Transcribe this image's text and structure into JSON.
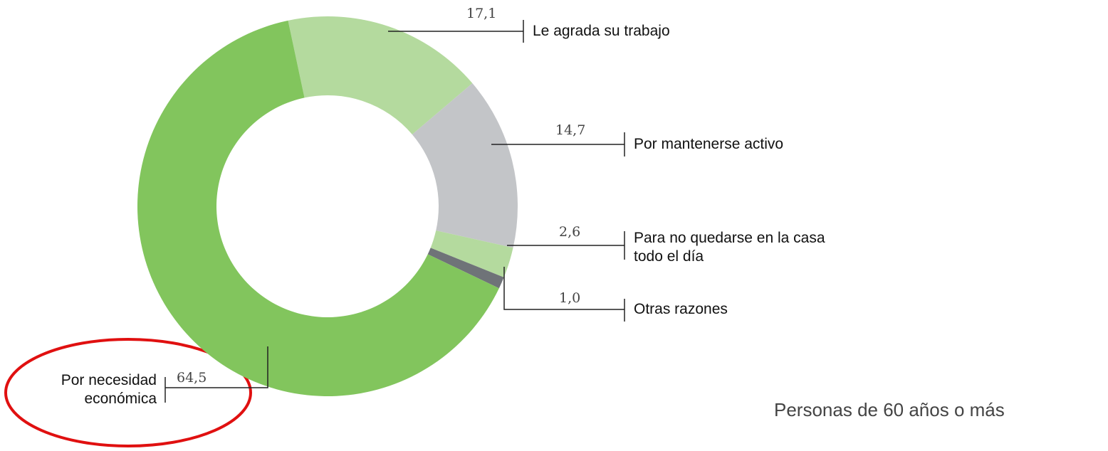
{
  "chart_data": {
    "type": "pie",
    "donut": true,
    "categories": [
      "Le agrada su trabajo",
      "Por mantenerse activo",
      "Para no quedarse en la casa todo el día",
      "Otras razones",
      "Por necesidad económica"
    ],
    "values": [
      17.1,
      14.7,
      2.6,
      1.0,
      64.5
    ],
    "value_labels": [
      "17,1",
      "14,7",
      "2,6",
      "1,0",
      "64,5"
    ],
    "colors": [
      "#b4da9e",
      "#c3c5c8",
      "#b4da9e",
      "#6f7378",
      "#82c55d"
    ],
    "annotation": "Personas de 60 años o más"
  }
}
